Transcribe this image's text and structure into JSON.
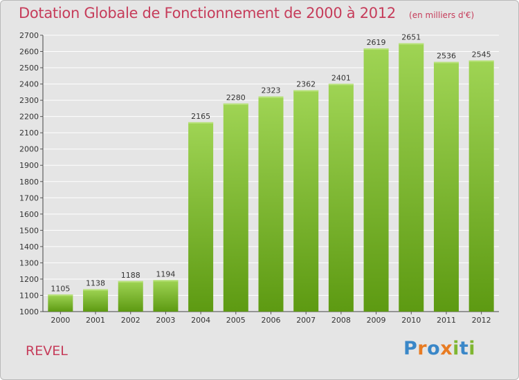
{
  "header": {
    "title": "Dotation Globale de Fonctionnement de 2000 à 2012",
    "subtitle": "(en milliers d'€)"
  },
  "footer": {
    "place": "REVEL",
    "logo": "Proxiti",
    "logo_colors": [
      "#3a87c8",
      "#e87b22",
      "#3a87c8",
      "#e87b22",
      "#7fb631",
      "#3a87c8",
      "#7fb631"
    ]
  },
  "colors": {
    "bar_light": "#9fd454",
    "bar_dark": "#5d9a12",
    "accent": "#c63c5a",
    "grid": "#ffffff",
    "background": "#e5e5e5"
  },
  "chart_data": {
    "type": "bar",
    "title": "Dotation Globale de Fonctionnement de 2000 à 2012",
    "subtitle": "(en milliers d'€)",
    "categories": [
      "2000",
      "2001",
      "2002",
      "2003",
      "2004",
      "2005",
      "2006",
      "2007",
      "2008",
      "2009",
      "2010",
      "2011",
      "2012"
    ],
    "values": [
      1105,
      1138,
      1188,
      1194,
      2165,
      2280,
      2323,
      2362,
      2401,
      2619,
      2651,
      2536,
      2545
    ],
    "ylim": [
      1000,
      2700
    ],
    "yticks": [
      1000,
      1100,
      1200,
      1300,
      1400,
      1500,
      1600,
      1700,
      1800,
      1900,
      2000,
      2100,
      2200,
      2300,
      2400,
      2500,
      2600,
      2700
    ],
    "grid": true,
    "legend": "none",
    "data_labels": true
  }
}
